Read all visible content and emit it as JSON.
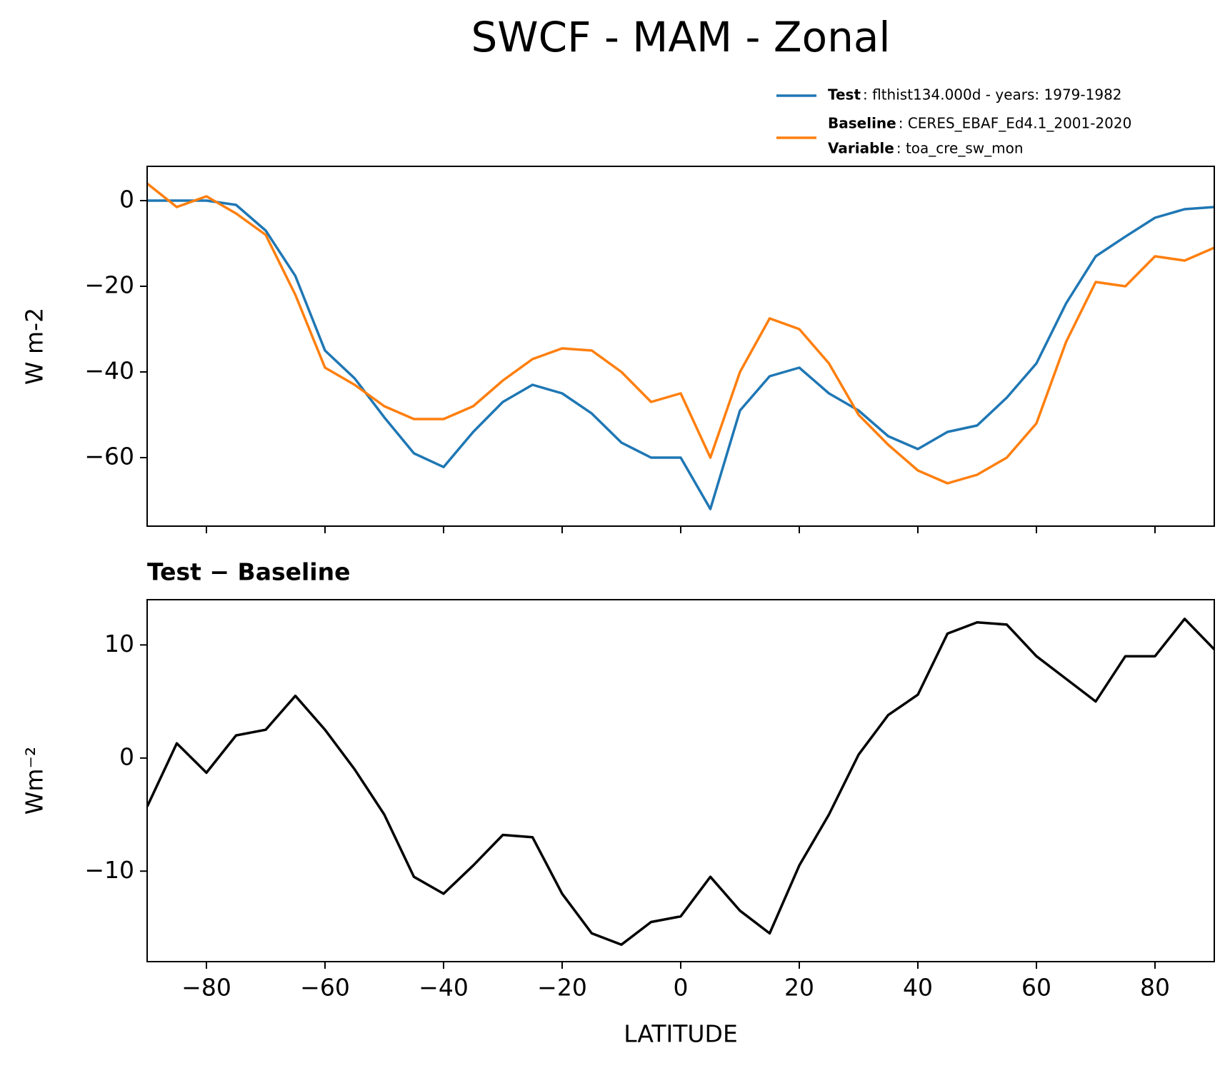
{
  "chart_data": [
    {
      "type": "line",
      "title": "SWCF - MAM - Zonal",
      "ylabel": "W m-2",
      "x": [
        -90,
        -85,
        -80,
        -75,
        -70,
        -65,
        -60,
        -55,
        -50,
        -45,
        -40,
        -35,
        -30,
        -25,
        -20,
        -15,
        -10,
        -5,
        0,
        5,
        10,
        15,
        20,
        25,
        30,
        35,
        40,
        45,
        50,
        55,
        60,
        65,
        70,
        75,
        80,
        85,
        90
      ],
      "series": [
        {
          "name": "Test",
          "description": ": flthist134.000d - years: 1979-1982",
          "color": "#1f77b4",
          "values": [
            0,
            0,
            0,
            -1,
            -7,
            -17.6,
            -35,
            -41.5,
            -50.6,
            -59,
            -62.2,
            -54,
            -47,
            -43,
            -45,
            -49.7,
            -56.5,
            -60,
            -60,
            -72,
            -49,
            -41,
            -39,
            -45,
            -49,
            -55,
            -58,
            -54,
            -52.5,
            -46,
            -38,
            -24,
            -13,
            -8.4,
            -4,
            -2,
            -1.5
          ]
        },
        {
          "name": "Baseline",
          "description": ": CERES_EBAF_Ed4.1_2001-2020",
          "color": "#ff7f0e",
          "values": [
            4,
            -1.5,
            1,
            -3,
            -8,
            -22,
            -39,
            -43,
            -48,
            -51,
            -51,
            -48,
            -42,
            -37,
            -34.5,
            -35,
            -40,
            -47,
            -45,
            -60,
            -40,
            -27.5,
            -30,
            -38,
            -50,
            -57,
            -63,
            -66,
            -64,
            -60,
            -52,
            -33,
            -19,
            -20,
            -13,
            -14,
            -11
          ]
        }
      ],
      "variable_label": "Variable",
      "variable_text": ": toa_cre_sw_mon",
      "xlim": [
        -90,
        90
      ],
      "xticks": [
        -80,
        -60,
        -40,
        -20,
        0,
        20,
        40,
        60,
        80
      ],
      "ylim": [
        -76,
        8
      ],
      "yticks": [
        {
          "value": -60,
          "label": "−60"
        },
        {
          "value": -40,
          "label": "−40"
        },
        {
          "value": -20,
          "label": "−20"
        },
        0
      ]
    },
    {
      "type": "line",
      "title": "Test − Baseline",
      "ylabel": "Wm⁻²",
      "xlabel": "LATITUDE",
      "color": "#000000",
      "x": [
        -90,
        -85,
        -80,
        -75,
        -70,
        -65,
        -60,
        -55,
        -50,
        -45,
        -40,
        -35,
        -30,
        -25,
        -20,
        -15,
        -10,
        -5,
        0,
        5,
        10,
        15,
        20,
        25,
        30,
        35,
        40,
        45,
        50,
        55,
        60,
        65,
        70,
        75,
        80,
        85,
        90
      ],
      "values": [
        -4.3,
        1.3,
        -1.3,
        2,
        2.5,
        5.5,
        2.5,
        -1,
        -5,
        -10.5,
        -12,
        -9.5,
        -6.8,
        -7,
        -12,
        -15.5,
        -16.5,
        -14.5,
        -14,
        -10.5,
        -13.5,
        -15.5,
        -9.5,
        -5,
        0.3,
        3.8,
        5.6,
        11,
        12,
        11.8,
        9,
        7,
        5,
        9,
        9,
        12.3,
        9.6
      ],
      "xlim": [
        -90,
        90
      ],
      "xticks": [
        {
          "value": -80,
          "label": "−80"
        },
        {
          "value": -60,
          "label": "−60"
        },
        {
          "value": -40,
          "label": "−40"
        },
        {
          "value": -20,
          "label": "−20"
        },
        0,
        20,
        40,
        60,
        80
      ],
      "ylim": [
        -18,
        14
      ],
      "yticks": [
        {
          "value": -10,
          "label": "−10"
        },
        0,
        10
      ]
    }
  ]
}
